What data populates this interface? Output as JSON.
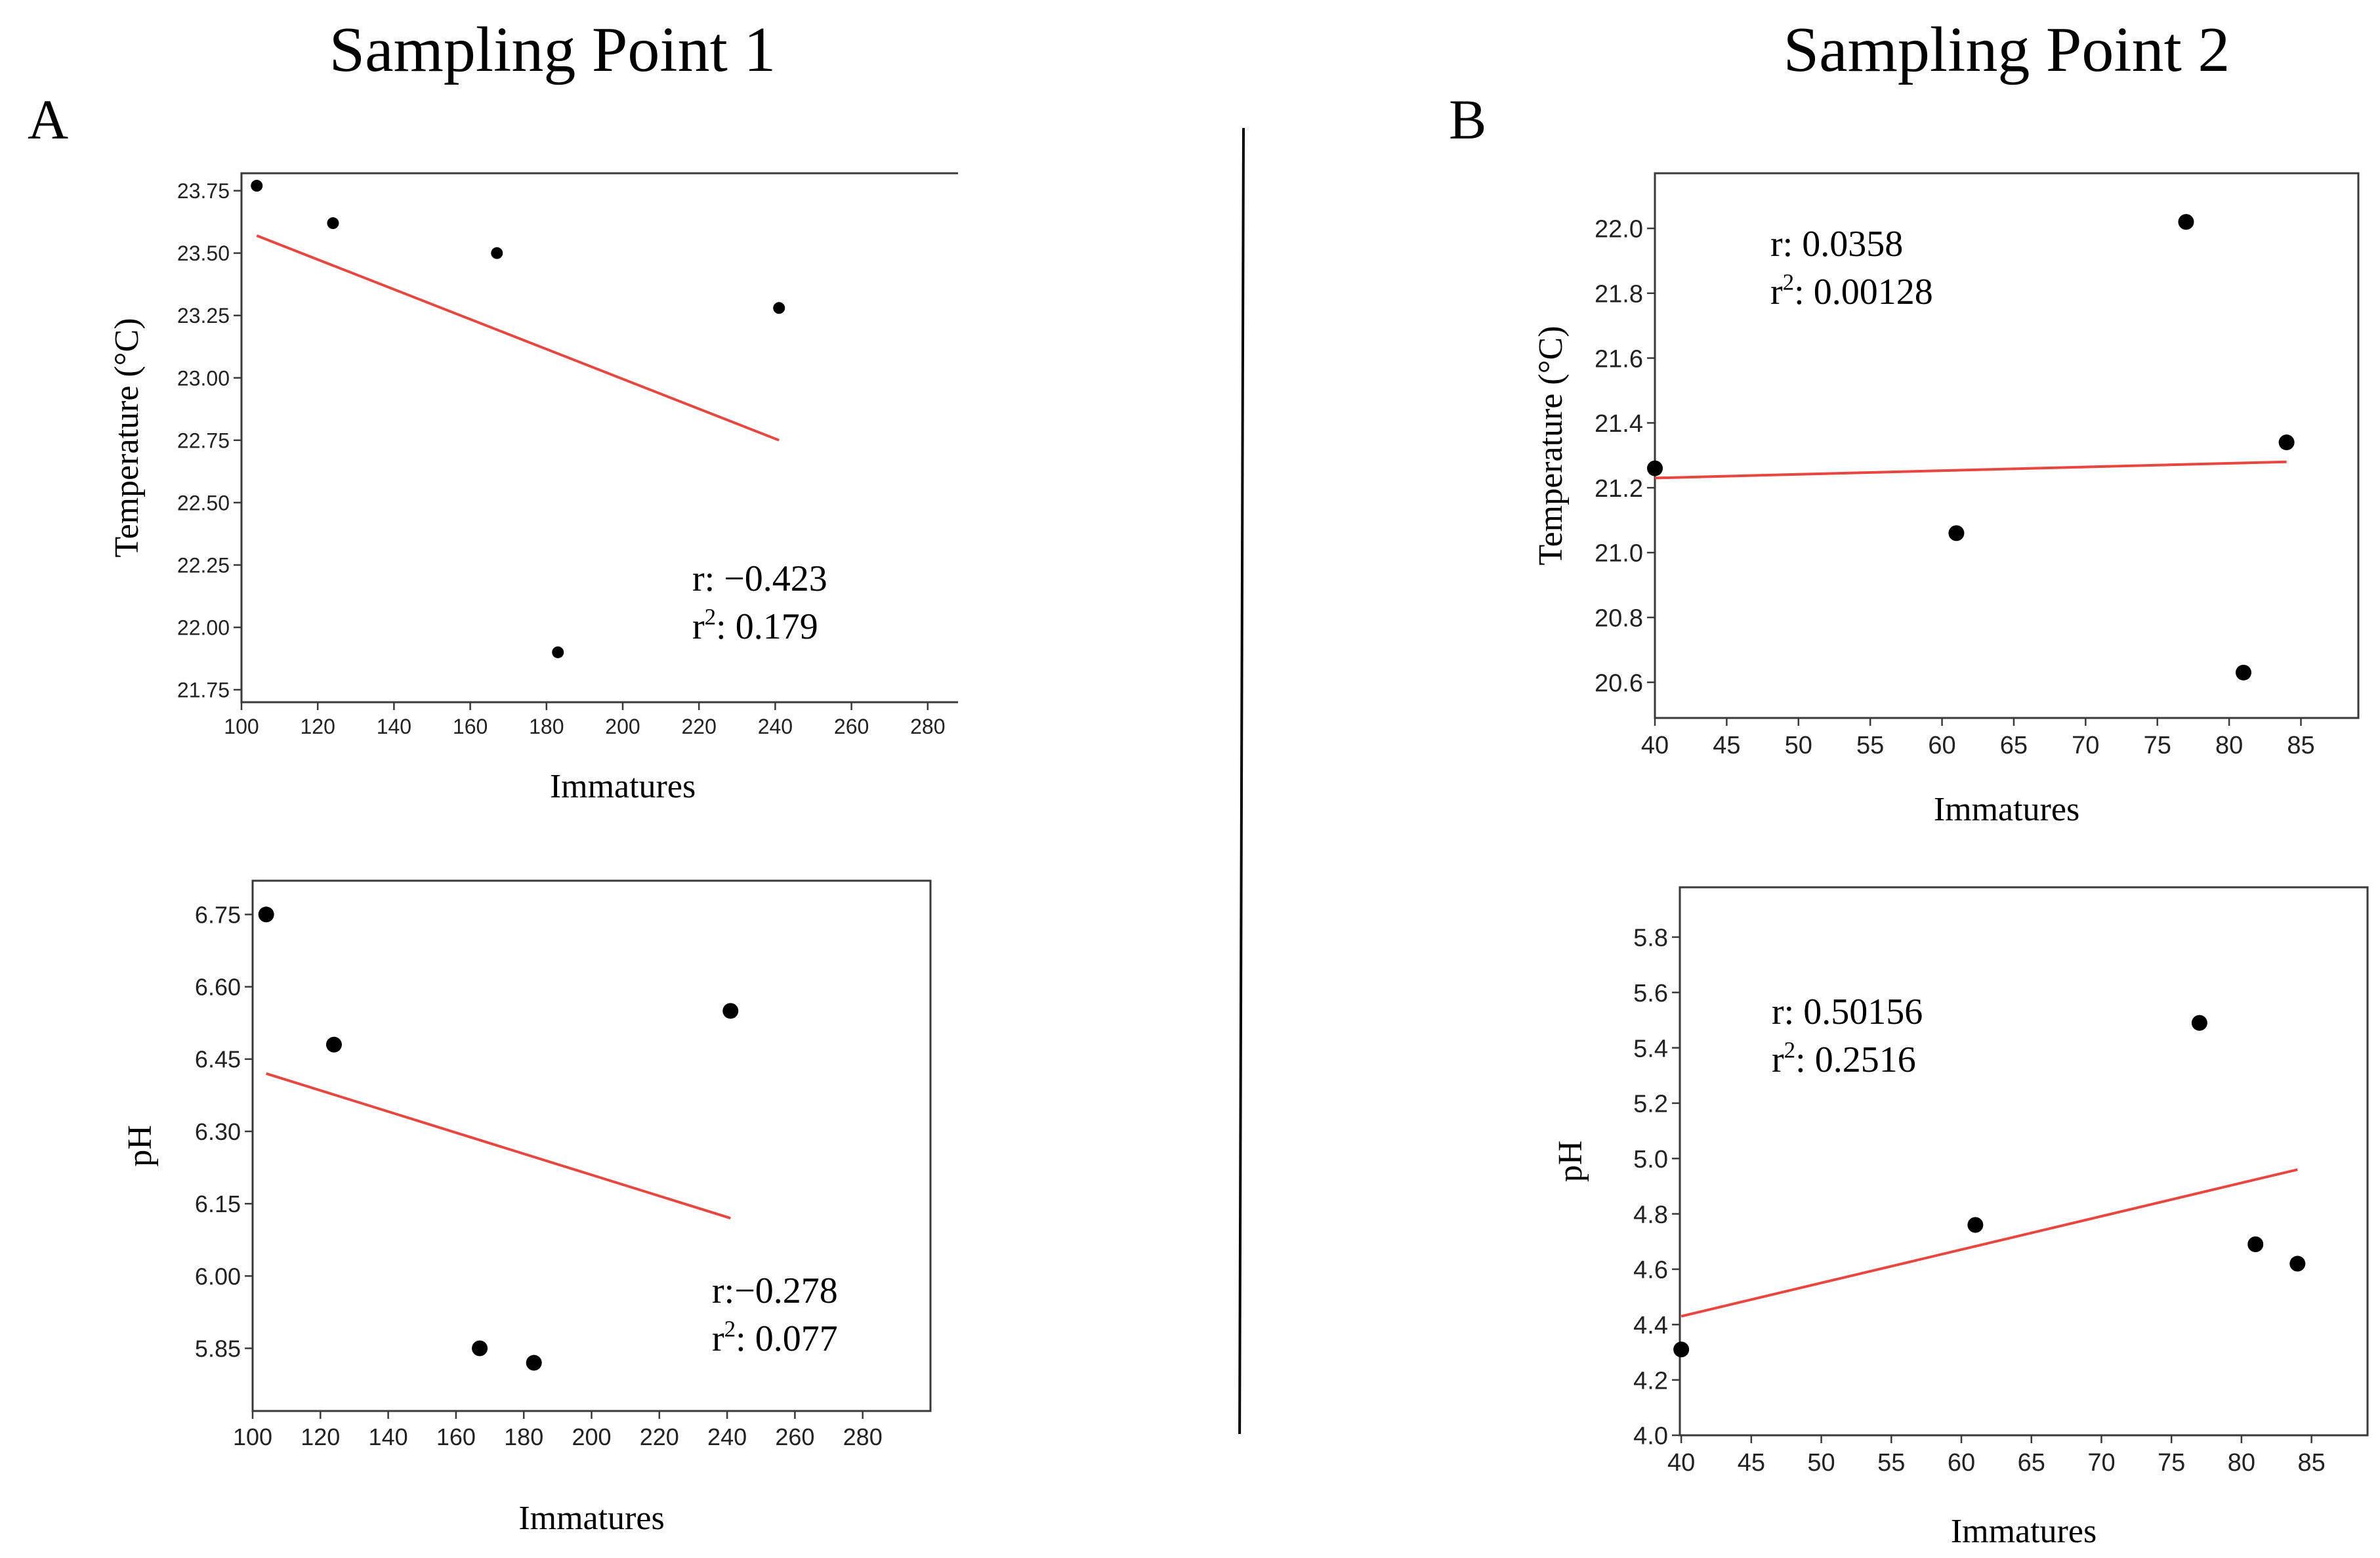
{
  "figure": {
    "panel_titles": [
      "Sampling Point 1",
      "Sampling Point 2"
    ],
    "panel_letters": [
      "A",
      "B"
    ]
  },
  "chart_data": [
    {
      "id": "sp1-temperature",
      "type": "scatter",
      "xlabel": "Immatures",
      "ylabel": "Temperature (°C)",
      "xlim": [
        100,
        300
      ],
      "ylim": [
        21.7,
        23.82
      ],
      "xticks": [
        100,
        120,
        140,
        160,
        180,
        200,
        220,
        240,
        260,
        280
      ],
      "xtick_labels": [
        "100",
        "120",
        "140",
        "160",
        "180",
        "200",
        "220",
        "240",
        "260",
        "280"
      ],
      "yticks": [
        21.75,
        22.0,
        22.25,
        22.5,
        22.75,
        23.0,
        23.25,
        23.5,
        23.75
      ],
      "ytick_labels": [
        "21.75",
        "22.00",
        "22.25",
        "22.50",
        "22.75",
        "23.00",
        "23.25",
        "23.50",
        "23.75"
      ],
      "points": [
        [
          104,
          23.77
        ],
        [
          124,
          23.62
        ],
        [
          167,
          23.5
        ],
        [
          241,
          23.28
        ],
        [
          183,
          21.9
        ]
      ],
      "fit_line": {
        "x": [
          104,
          241
        ],
        "y": [
          23.57,
          22.75
        ],
        "color": "#e8473f"
      },
      "annotation": {
        "r": "r: −0.423",
        "r2_prefix": "r",
        "r2_value": ": 0.179"
      }
    },
    {
      "id": "sp1-ph",
      "type": "scatter",
      "xlabel": "Immatures",
      "ylabel": "pH",
      "xlim": [
        100,
        300
      ],
      "ylim": [
        5.72,
        6.82
      ],
      "xticks": [
        100,
        120,
        140,
        160,
        180,
        200,
        220,
        240,
        260,
        280
      ],
      "xtick_labels": [
        "100",
        "120",
        "140",
        "160",
        "180",
        "200",
        "220",
        "240",
        "260",
        "280"
      ],
      "yticks": [
        5.85,
        6.0,
        6.15,
        6.3,
        6.45,
        6.6,
        6.75
      ],
      "ytick_labels": [
        "5.85",
        "6.00",
        "6.15",
        "6.30",
        "6.45",
        "6.60",
        "6.75"
      ],
      "points": [
        [
          104,
          6.75
        ],
        [
          124,
          6.48
        ],
        [
          241,
          6.55
        ],
        [
          167,
          5.85
        ],
        [
          183,
          5.82
        ]
      ],
      "fit_line": {
        "x": [
          104,
          241
        ],
        "y": [
          6.42,
          6.12
        ],
        "color": "#e8473f"
      },
      "annotation": {
        "r": "r:−0.278",
        "r2_prefix": "r",
        "r2_value": ": 0.077"
      }
    },
    {
      "id": "sp2-temperature",
      "type": "scatter",
      "xlabel": "Immatures",
      "ylabel": "Temperature (°C)",
      "xlim": [
        40,
        89
      ],
      "ylim": [
        20.49,
        22.17
      ],
      "xticks": [
        40,
        45,
        50,
        55,
        60,
        65,
        70,
        75,
        80,
        85
      ],
      "xtick_labels": [
        "40",
        "45",
        "50",
        "55",
        "60",
        "65",
        "70",
        "75",
        "80",
        "85"
      ],
      "yticks": [
        20.6,
        20.8,
        21.0,
        21.2,
        21.4,
        21.6,
        21.8,
        22.0
      ],
      "ytick_labels": [
        "20.6",
        "20.8",
        "21.0",
        "21.2",
        "21.4",
        "21.6",
        "21.8",
        "22.0"
      ],
      "points": [
        [
          40,
          21.26
        ],
        [
          61,
          21.06
        ],
        [
          77,
          22.02
        ],
        [
          81,
          20.63
        ],
        [
          84,
          21.34
        ]
      ],
      "fit_line": {
        "x": [
          40,
          84
        ],
        "y": [
          21.23,
          21.28
        ],
        "color": "#e8473f"
      },
      "annotation": {
        "r": "r: 0.0358",
        "r2_prefix": "r",
        "r2_value": ": 0.00128"
      }
    },
    {
      "id": "sp2-ph",
      "type": "scatter",
      "xlabel": "Immatures",
      "ylabel": "pH",
      "xlim": [
        39.9,
        89
      ],
      "ylim": [
        4.0,
        5.98
      ],
      "xticks": [
        40,
        45,
        50,
        55,
        60,
        65,
        70,
        75,
        80,
        85
      ],
      "xtick_labels": [
        "40",
        "45",
        "50",
        "55",
        "60",
        "65",
        "70",
        "75",
        "80",
        "85"
      ],
      "yticks": [
        4.0,
        4.2,
        4.4,
        4.6,
        4.8,
        5.0,
        5.2,
        5.4,
        5.6,
        5.8
      ],
      "ytick_labels": [
        "4.0",
        "4.2",
        "4.4",
        "4.6",
        "4.8",
        "5.0",
        "5.2",
        "5.4",
        "5.6",
        "5.8"
      ],
      "points": [
        [
          40,
          4.31
        ],
        [
          61,
          4.76
        ],
        [
          77,
          5.49
        ],
        [
          81,
          4.69
        ],
        [
          84,
          4.62
        ]
      ],
      "fit_line": {
        "x": [
          40,
          84
        ],
        "y": [
          4.43,
          4.96
        ],
        "color": "#e8473f"
      },
      "annotation": {
        "r": "r: 0.50156",
        "r2_prefix": "r",
        "r2_value": ": 0.2516"
      }
    }
  ]
}
